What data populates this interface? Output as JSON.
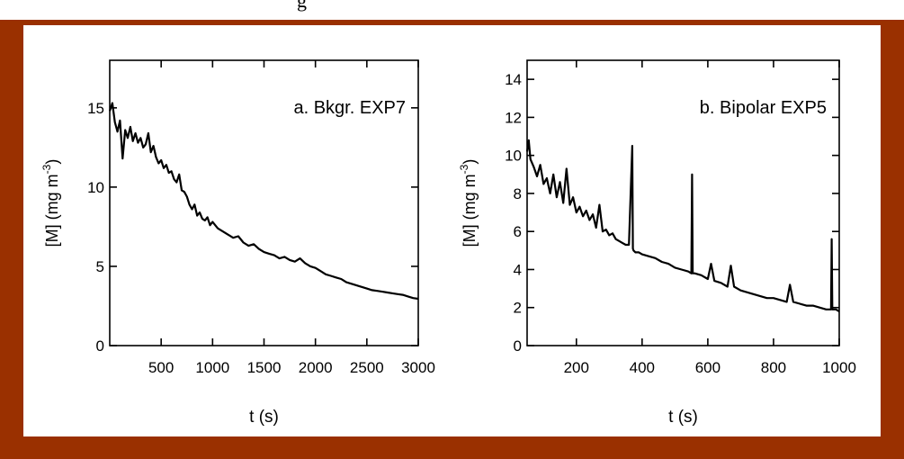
{
  "page": {
    "top_title_fragment": "g",
    "frame_color": "#9a3000",
    "panel_color": "#ffffff"
  },
  "chart_data": [
    {
      "type": "line",
      "title": "a. Bkgr. EXP7",
      "xlabel": "t (s)",
      "ylabel": "[M] (mg m",
      "ylabel_sup": "-3",
      "ylabel_close": ")",
      "xlim": [
        0,
        3000
      ],
      "ylim": [
        0,
        18
      ],
      "xticks": [
        500,
        1000,
        1500,
        2000,
        2500,
        3000
      ],
      "xtick_labels": [
        "500",
        "1000",
        "1500",
        "2000",
        "2500",
        "3000"
      ],
      "yticks": [
        0,
        5,
        10,
        15
      ],
      "ytick_labels": [
        "0",
        "5",
        "10",
        "15"
      ],
      "series": [
        {
          "x": [
            0,
            25,
            50,
            75,
            100,
            125,
            150,
            175,
            200,
            225,
            250,
            275,
            300,
            325,
            350,
            375,
            400,
            425,
            450,
            475,
            500,
            525,
            550,
            575,
            600,
            625,
            650,
            675,
            700,
            725,
            750,
            775,
            800,
            825,
            850,
            875,
            900,
            925,
            950,
            975,
            1000,
            1050,
            1100,
            1150,
            1200,
            1250,
            1300,
            1350,
            1400,
            1450,
            1500,
            1550,
            1600,
            1650,
            1700,
            1750,
            1800,
            1850,
            1900,
            1950,
            2000,
            2050,
            2100,
            2150,
            2200,
            2250,
            2300,
            2350,
            2400,
            2450,
            2500,
            2550,
            2600,
            2650,
            2700,
            2750,
            2800,
            2850,
            2900,
            2950,
            3000
          ],
          "y": [
            14.8,
            15.3,
            14.1,
            13.5,
            14.2,
            11.8,
            13.6,
            13.1,
            13.8,
            12.9,
            13.4,
            12.8,
            13.1,
            12.5,
            12.7,
            13.4,
            12.2,
            12.6,
            11.9,
            11.5,
            11.7,
            11.2,
            11.4,
            10.9,
            11.0,
            10.5,
            10.3,
            10.8,
            9.8,
            9.7,
            9.4,
            8.9,
            8.6,
            8.9,
            8.2,
            8.4,
            8.0,
            7.9,
            8.1,
            7.6,
            7.8,
            7.4,
            7.2,
            7.0,
            6.8,
            6.9,
            6.5,
            6.3,
            6.4,
            6.1,
            5.9,
            5.8,
            5.7,
            5.5,
            5.6,
            5.4,
            5.3,
            5.5,
            5.2,
            5.0,
            4.9,
            4.7,
            4.5,
            4.4,
            4.3,
            4.2,
            4.0,
            3.9,
            3.8,
            3.7,
            3.6,
            3.5,
            3.45,
            3.4,
            3.35,
            3.3,
            3.25,
            3.2,
            3.1,
            3.0,
            2.95
          ]
        }
      ]
    },
    {
      "type": "line",
      "title": "b. Bipolar EXP5",
      "xlabel": "t (s)",
      "ylabel": "[M] (mg m",
      "ylabel_sup": "-3",
      "ylabel_close": ")",
      "xlim": [
        50,
        1000
      ],
      "ylim": [
        0,
        15
      ],
      "xticks": [
        200,
        400,
        600,
        800,
        1000
      ],
      "xtick_labels": [
        "200",
        "400",
        "600",
        "800",
        "1000"
      ],
      "yticks": [
        0,
        2,
        4,
        6,
        8,
        10,
        12,
        14
      ],
      "ytick_labels": [
        "0",
        "2",
        "4",
        "6",
        "8",
        "10",
        "12",
        "14"
      ],
      "series": [
        {
          "x": [
            50,
            55,
            60,
            70,
            80,
            90,
            100,
            110,
            120,
            130,
            140,
            150,
            160,
            170,
            180,
            190,
            200,
            210,
            220,
            230,
            240,
            250,
            260,
            270,
            280,
            290,
            300,
            310,
            320,
            330,
            340,
            350,
            360,
            370,
            372,
            374,
            380,
            390,
            400,
            420,
            440,
            460,
            480,
            500,
            520,
            540,
            550,
            552,
            554,
            560,
            580,
            600,
            610,
            620,
            640,
            660,
            670,
            680,
            700,
            720,
            740,
            760,
            780,
            800,
            820,
            840,
            850,
            860,
            880,
            900,
            920,
            940,
            960,
            975,
            977,
            979,
            990,
            1000
          ],
          "y": [
            10.2,
            10.8,
            9.8,
            9.4,
            8.9,
            9.5,
            8.5,
            8.8,
            8.0,
            9.0,
            7.8,
            8.6,
            7.5,
            9.3,
            7.4,
            7.8,
            7.0,
            7.3,
            6.8,
            7.1,
            6.6,
            6.9,
            6.2,
            7.4,
            6.0,
            6.1,
            5.8,
            5.9,
            5.6,
            5.5,
            5.4,
            5.3,
            5.3,
            10.5,
            5.1,
            5.0,
            4.9,
            4.9,
            4.8,
            4.7,
            4.6,
            4.4,
            4.3,
            4.1,
            4.0,
            3.9,
            3.8,
            9.0,
            3.8,
            3.8,
            3.7,
            3.5,
            4.3,
            3.4,
            3.3,
            3.1,
            4.2,
            3.1,
            2.9,
            2.8,
            2.7,
            2.6,
            2.5,
            2.5,
            2.4,
            2.3,
            3.2,
            2.3,
            2.2,
            2.1,
            2.1,
            2.0,
            1.9,
            1.9,
            5.6,
            1.9,
            1.9,
            1.8
          ]
        }
      ]
    }
  ]
}
